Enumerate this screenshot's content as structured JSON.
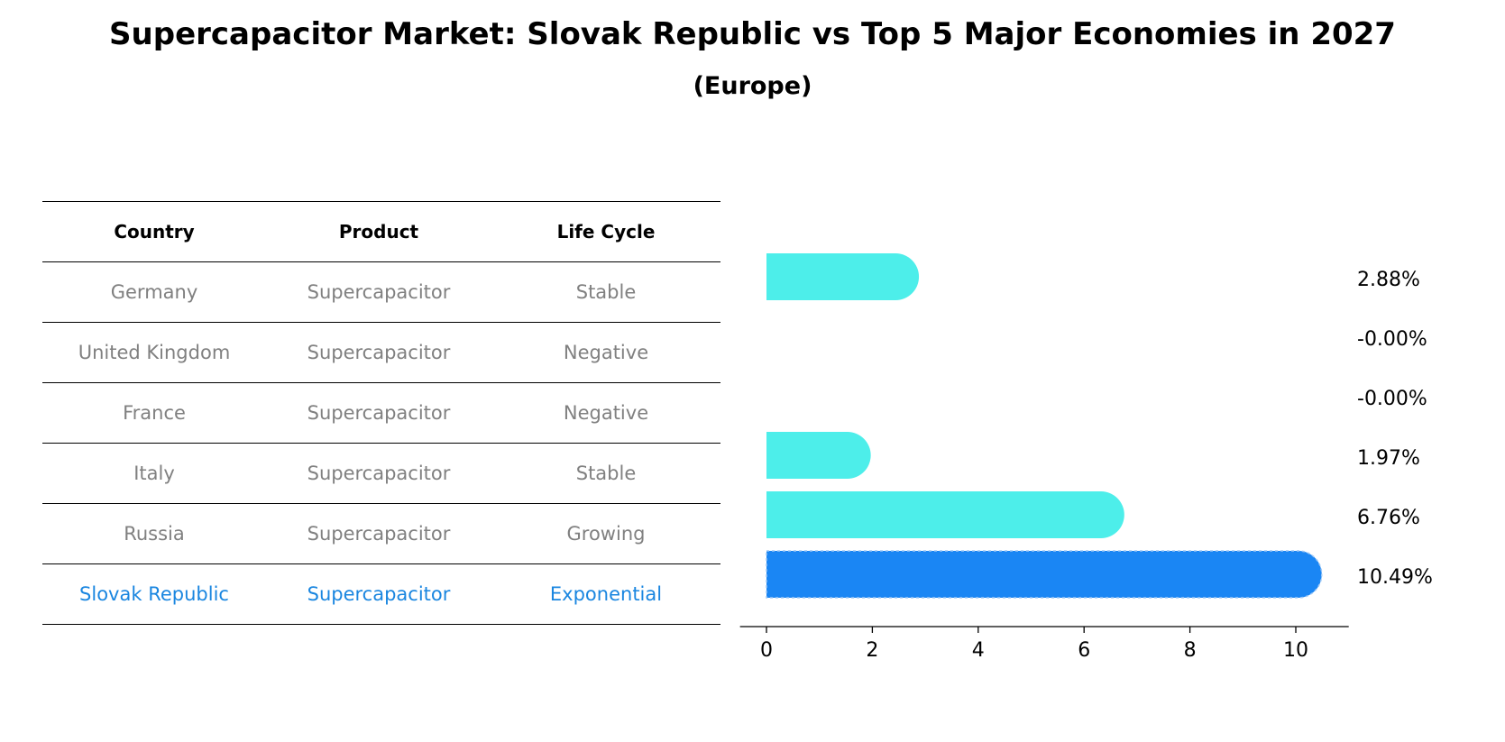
{
  "title": "Supercapacitor Market: Slovak Republic vs Top 5 Major Economies in 2027",
  "subtitle": "(Europe)",
  "table": {
    "headers": [
      "Country",
      "Product",
      "Life Cycle"
    ],
    "rows": [
      [
        "Germany",
        "Supercapacitor",
        "Stable"
      ],
      [
        "United Kingdom",
        "Supercapacitor",
        "Negative"
      ],
      [
        "France",
        "Supercapacitor",
        "Negative"
      ],
      [
        "Italy",
        "Supercapacitor",
        "Stable"
      ],
      [
        "Russia",
        "Supercapacitor",
        "Growing"
      ],
      [
        "Slovak Republic",
        "Supercapacitor",
        "Exponential"
      ]
    ]
  },
  "chart_data": {
    "type": "bar",
    "orientation": "horizontal",
    "categories": [
      "Germany",
      "United Kingdom",
      "France",
      "Italy",
      "Russia",
      "Slovak Republic"
    ],
    "values": [
      2.88,
      -0.0,
      -0.0,
      1.97,
      6.76,
      10.49
    ],
    "value_labels": [
      "2.88%",
      "-0.00%",
      "-0.00%",
      "1.97%",
      "6.76%",
      "10.49%"
    ],
    "highlight": "Slovak Republic",
    "xlim": [
      -0.5,
      11
    ],
    "xticks": [
      0,
      2,
      4,
      6,
      8,
      10
    ],
    "xlabel": "",
    "ylabel": "",
    "colors": {
      "bar": "#4deeea",
      "highlight": "#1a86f4",
      "highlight_text": "#1a86e0",
      "row_text": "#808080"
    }
  }
}
